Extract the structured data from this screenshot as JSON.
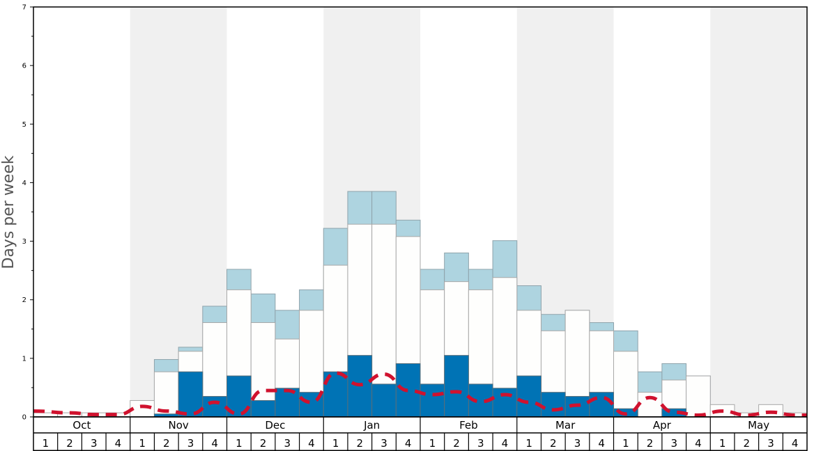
{
  "chart_data": {
    "type": "bar",
    "ylabel": "Days per week",
    "ylim": [
      0,
      7
    ],
    "yticks": [
      "0",
      "1",
      "2",
      "3",
      "4",
      "5",
      "6",
      "7"
    ],
    "months": [
      "Oct",
      "Nov",
      "Dec",
      "Jan",
      "Feb",
      "Mar",
      "Apr",
      "May"
    ],
    "week_labels": [
      "1",
      "2",
      "3",
      "4"
    ],
    "grid": false,
    "colors": {
      "dark_series": "#0073b5",
      "mid_series": "#fefefd",
      "light_series": "#aed4e0",
      "dashed_line": "#d0122e",
      "shade": "#f0f0f0"
    },
    "series": [
      {
        "values": [
          0,
          0,
          0,
          0,
          0,
          0.05,
          0.77,
          0.35,
          0.7,
          0.28,
          0.49,
          0.42,
          0.77,
          1.05,
          0.56,
          0.91,
          0.56,
          1.05,
          0.56,
          0.49,
          0.7,
          0.42,
          0.35,
          0.42,
          0.14,
          0,
          0.14,
          0,
          0,
          0,
          0,
          0
        ]
      },
      {
        "values": [
          0.07,
          0.07,
          0.07,
          0.07,
          0.28,
          0.77,
          1.12,
          1.61,
          2.17,
          1.61,
          1.33,
          1.82,
          2.59,
          3.29,
          3.29,
          3.08,
          2.17,
          2.31,
          2.17,
          2.38,
          1.82,
          1.47,
          1.82,
          1.47,
          1.12,
          0.42,
          0.63,
          0.7,
          0.21,
          0.07,
          0.21,
          0.07
        ]
      },
      {
        "values": [
          0,
          0,
          0,
          0,
          0,
          0.98,
          1.19,
          1.89,
          2.52,
          2.1,
          1.82,
          2.17,
          3.22,
          3.85,
          3.85,
          3.36,
          2.52,
          2.8,
          2.52,
          3.01,
          2.24,
          1.75,
          1.82,
          1.61,
          1.47,
          0.77,
          0.91,
          0.7,
          0,
          0,
          0,
          0
        ]
      },
      {
        "values": [
          0.1,
          0.07,
          0.04,
          0.04,
          0.18,
          0.1,
          0.05,
          0.25,
          0.05,
          0.45,
          0.45,
          0.25,
          0.75,
          0.55,
          0.73,
          0.45,
          0.38,
          0.43,
          0.26,
          0.38,
          0.25,
          0.12,
          0.2,
          0.33,
          0.05,
          0.33,
          0.08,
          0.03,
          0.1,
          0.03,
          0.08,
          0.03
        ]
      }
    ]
  }
}
